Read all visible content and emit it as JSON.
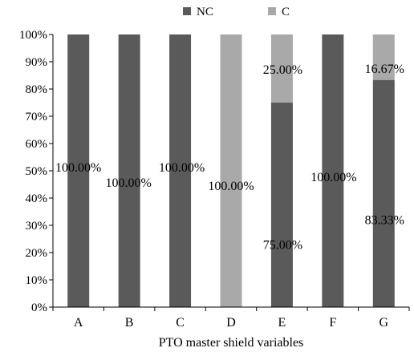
{
  "chart_data": {
    "type": "bar",
    "stacked": true,
    "categories": [
      "A",
      "B",
      "C",
      "D",
      "E",
      "F",
      "G"
    ],
    "series": [
      {
        "name": "NC",
        "color": "#5a5a5a",
        "values": [
          100,
          100,
          100,
          0,
          75,
          100,
          83.33
        ]
      },
      {
        "name": "C",
        "color": "#a9a9a9",
        "values": [
          0,
          0,
          0,
          100,
          25,
          0,
          16.67
        ]
      }
    ],
    "data_labels": [
      {
        "category": "A",
        "series": "NC",
        "text": "100.00%"
      },
      {
        "category": "B",
        "series": "NC",
        "text": "100.00%"
      },
      {
        "category": "C",
        "series": "NC",
        "text": "100.00%"
      },
      {
        "category": "D",
        "series": "C",
        "text": "100.00%"
      },
      {
        "category": "E",
        "series": "NC",
        "text": "75.00%"
      },
      {
        "category": "E",
        "series": "C",
        "text": "25.00%"
      },
      {
        "category": "F",
        "series": "NC",
        "text": "100.00%"
      },
      {
        "category": "G",
        "series": "NC",
        "text": "83.33%"
      },
      {
        "category": "G",
        "series": "C",
        "text": "16.67%"
      }
    ],
    "xlabel": "PTO master shield variables",
    "ylabel": "",
    "ylim": [
      0,
      100
    ],
    "yticks": [
      "0%",
      "10%",
      "20%",
      "30%",
      "40%",
      "50%",
      "60%",
      "70%",
      "80%",
      "90%",
      "100%"
    ],
    "grid": false,
    "legend": "top-center"
  }
}
